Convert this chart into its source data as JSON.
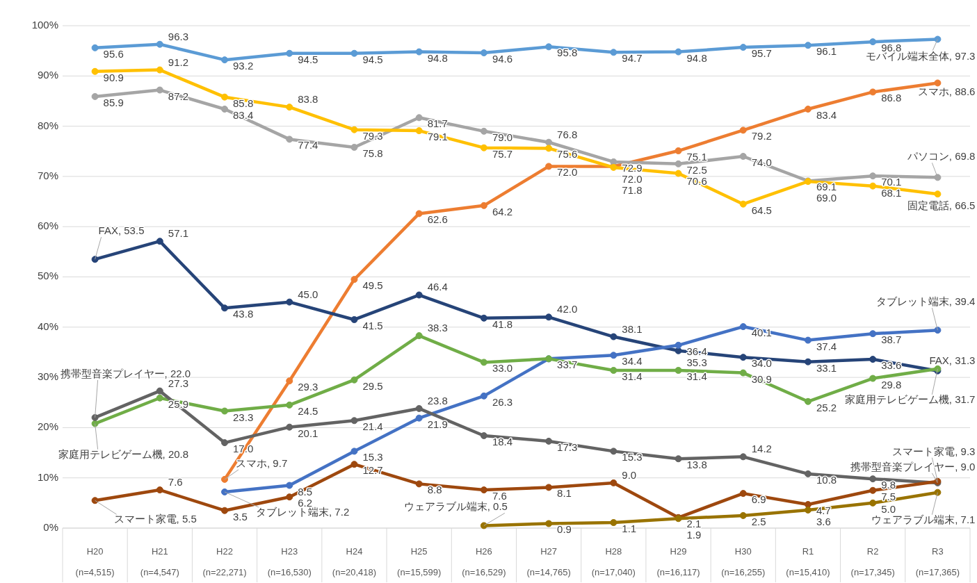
{
  "chart_data": {
    "type": "line",
    "categories": [
      "H20\n(n=4,515)",
      "H21\n(n=4,547)",
      "H22\n(n=22,271)",
      "H23\n(n=16,530)",
      "H24\n(n=20,418)",
      "H25\n(n=15,599)",
      "H26\n(n=16,529)",
      "H27\n(n=14,765)",
      "H28\n(n=17,040)",
      "H29\n(n=16,117)",
      "H30\n(n=16,255)",
      "R1\n(n=15,410)",
      "R2\n(n=17,345)",
      "R3\n(n=17,365)"
    ],
    "series": [
      {
        "color": "#5b9bd5",
        "values": [
          95.6,
          96.3,
          93.2,
          94.5,
          94.5,
          94.8,
          94.6,
          95.8,
          94.7,
          94.8,
          95.7,
          96.1,
          96.8,
          97.3
        ],
        "value_labels": [
          "95.6",
          "96.3",
          "93.2",
          "94.5",
          "94.5",
          "94.8",
          "94.6",
          "95.8",
          "94.7",
          "94.8",
          "95.7",
          "96.1",
          "96.8",
          "モバイル端末全体, 97.3"
        ]
      },
      {
        "color": "#ed7d31",
        "values": [
          null,
          null,
          9.7,
          29.3,
          49.5,
          62.6,
          64.2,
          72.0,
          72.0,
          75.1,
          79.2,
          83.4,
          86.8,
          88.6
        ],
        "value_labels": [
          null,
          null,
          "スマホ, 9.7",
          "29.3",
          "49.5",
          "62.6",
          "64.2",
          "72.0",
          "72.0",
          "75.1",
          "79.2",
          "83.4",
          "86.8",
          "スマホ, 88.6"
        ]
      },
      {
        "color": "#a5a5a5",
        "values": [
          85.9,
          87.2,
          83.4,
          77.4,
          75.8,
          81.7,
          79.0,
          76.8,
          72.9,
          72.5,
          74.0,
          69.1,
          70.1,
          69.8
        ],
        "value_labels": [
          "85.9",
          "87.2",
          "83.4",
          "77.4",
          "75.8",
          "81.7",
          "79.0",
          "76.8",
          "72.9",
          "72.5",
          "74.0",
          "69.1",
          "70.1",
          "パソコン, 69.8"
        ]
      },
      {
        "color": "#ffc000",
        "values": [
          90.9,
          91.2,
          85.8,
          83.8,
          79.3,
          79.1,
          75.7,
          75.6,
          71.8,
          70.6,
          64.5,
          69.0,
          68.1,
          66.5
        ],
        "value_labels": [
          "90.9",
          "91.2",
          "85.8",
          "83.8",
          "79.3",
          "79.1",
          "75.7",
          "75.6",
          "71.8",
          "70.6",
          "64.5",
          "69.0",
          "68.1",
          "固定電話, 66.5"
        ]
      },
      {
        "color": "#264478",
        "values": [
          53.5,
          57.1,
          43.8,
          45.0,
          41.5,
          46.4,
          41.8,
          42.0,
          38.1,
          35.3,
          34.0,
          33.1,
          33.6,
          31.3
        ],
        "value_labels": [
          "FAX, 53.5",
          "57.1",
          "43.8",
          "45.0",
          "41.5",
          "46.4",
          "41.8",
          "42.0",
          "38.1",
          "35.3",
          "34.0",
          "33.1",
          "33.6",
          "FAX, 31.3"
        ]
      },
      {
        "color": "#4472c4",
        "values": [
          null,
          null,
          7.2,
          8.5,
          15.3,
          21.9,
          26.3,
          33.7,
          34.4,
          36.4,
          40.1,
          37.4,
          38.7,
          39.4
        ],
        "value_labels": [
          null,
          null,
          "タブレット端末, 7.2",
          "8.5",
          "15.3",
          "21.9",
          "26.3",
          "33.7",
          "34.4",
          "36.4",
          "40.1",
          "37.4",
          "38.7",
          "タブレット端末, 39.4"
        ]
      },
      {
        "color": "#70ad47",
        "values": [
          20.8,
          25.9,
          23.3,
          24.5,
          29.5,
          38.3,
          33.0,
          33.7,
          31.4,
          31.4,
          30.9,
          25.2,
          29.8,
          31.7
        ],
        "value_labels": [
          "家庭用テレビゲーム機, 20.8",
          "25.9",
          "23.3",
          "24.5",
          "29.5",
          "38.3",
          "33.0",
          null,
          "31.4",
          "31.4",
          "30.9",
          "25.2",
          "29.8",
          "家庭用テレビゲーム機, 31.7"
        ]
      },
      {
        "color": "#636363",
        "values": [
          22.0,
          27.3,
          17.0,
          20.1,
          21.4,
          23.8,
          18.4,
          17.3,
          15.3,
          13.8,
          14.2,
          10.8,
          9.8,
          9.0
        ],
        "value_labels": [
          "携帯型音楽プレイヤー, 22.0",
          "27.3",
          "17.0",
          "20.1",
          "21.4",
          "23.8",
          "18.4",
          "17.3",
          "15.3",
          "13.8",
          "14.2",
          "10.8",
          "9.8",
          "携帯型音楽プレイヤー, 9.0"
        ]
      },
      {
        "color": "#9e480e",
        "values": [
          5.5,
          7.6,
          3.5,
          6.2,
          12.7,
          8.8,
          7.6,
          8.1,
          9.0,
          2.1,
          6.9,
          4.7,
          7.5,
          9.3
        ],
        "value_labels": [
          "スマート家電, 5.5",
          "7.6",
          "3.5",
          "6.2",
          "12.7",
          "8.8",
          "7.6",
          "8.1",
          "9.0",
          "2.1",
          "6.9",
          "4.7",
          "7.5",
          "スマート家電, 9.3"
        ]
      },
      {
        "color": "#997300",
        "values": [
          null,
          null,
          null,
          null,
          null,
          null,
          0.5,
          0.9,
          1.1,
          1.9,
          2.5,
          3.6,
          5.0,
          7.1
        ],
        "value_labels": [
          null,
          null,
          null,
          null,
          null,
          null,
          "ウェアラブル端末, 0.5",
          "0.9",
          "1.1",
          "1.9",
          "2.5",
          "3.6",
          "5.0",
          "ウェアラブル端末, 7.1"
        ]
      }
    ],
    "ylim": [
      0,
      100
    ],
    "yticks": [
      {
        "value": 0,
        "label": "0%"
      },
      {
        "value": 10,
        "label": "10%"
      },
      {
        "value": 20,
        "label": "20%"
      },
      {
        "value": 30,
        "label": "30%"
      },
      {
        "value": 40,
        "label": "40%"
      },
      {
        "value": 50,
        "label": "50%"
      },
      {
        "value": 60,
        "label": "60%"
      },
      {
        "value": 70,
        "label": "70%"
      },
      {
        "value": 80,
        "label": "80%"
      },
      {
        "value": 90,
        "label": "90%"
      },
      {
        "value": 100,
        "label": "100%"
      }
    ],
    "grid": "y",
    "marker": "circle",
    "line_style": "solid"
  }
}
